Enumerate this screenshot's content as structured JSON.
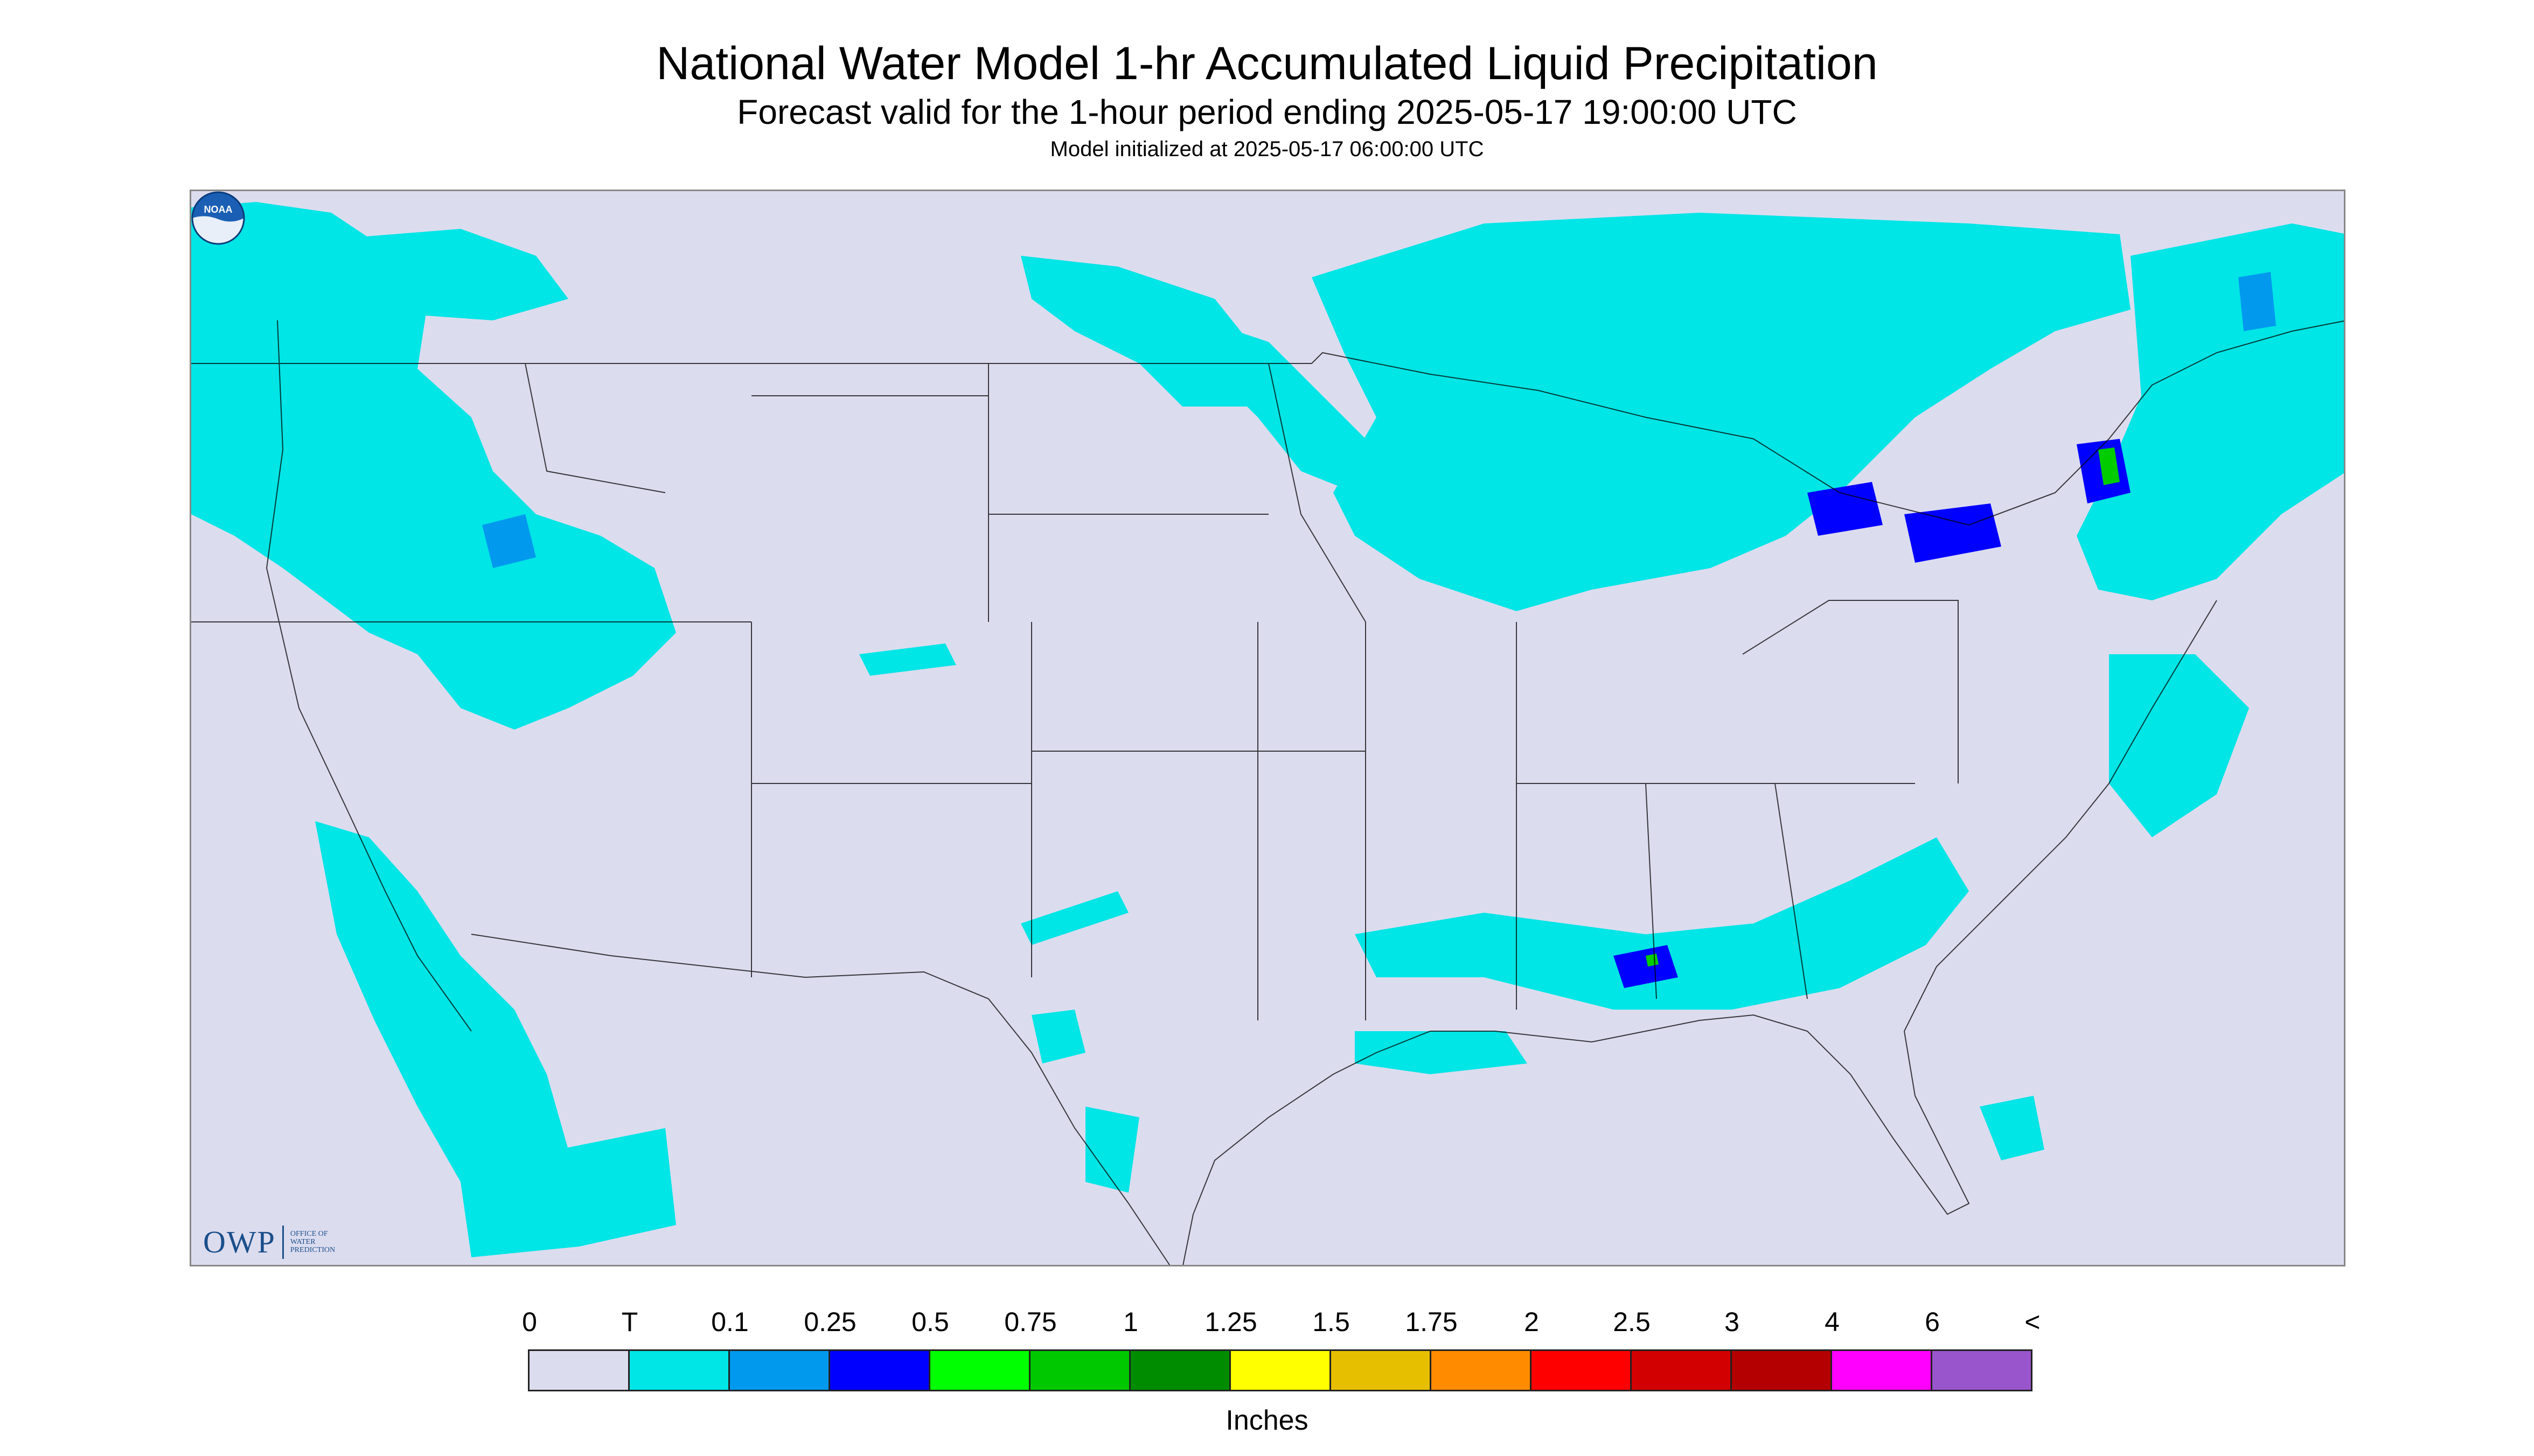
{
  "header": {
    "title": "National Water Model 1-hr Accumulated Liquid Precipitation",
    "subtitle": "Forecast valid for the 1-hour period ending 2025-05-17 19:00:00 UTC",
    "init_line": "Model initialized at 2025-05-17 06:00:00 UTC"
  },
  "map": {
    "background_color": "#dcdcef",
    "trace_color": "#00e5e5",
    "light_color": "#0099ee",
    "moderate_color": "#0000ff",
    "heavy_color": "#00cc00"
  },
  "logos": {
    "owp_letters": "OWP",
    "owp_lines": [
      "OFFICE OF",
      "WATER",
      "PREDICTION"
    ],
    "noaa_icon": "noaa-logo-icon"
  },
  "legend": {
    "labels": [
      "0",
      "T",
      "0.1",
      "0.25",
      "0.5",
      "0.75",
      "1",
      "1.25",
      "1.5",
      "1.75",
      "2",
      "2.5",
      "3",
      "4",
      "6",
      "<"
    ],
    "colors": [
      "#dcdcef",
      "#00e5e5",
      "#0099ee",
      "#0000ff",
      "#00ff00",
      "#00c800",
      "#008c00",
      "#ffff00",
      "#e6c000",
      "#ff8c00",
      "#ff0000",
      "#d20000",
      "#b40000",
      "#ff00ff",
      "#9955cc"
    ],
    "unit": "Inches"
  }
}
